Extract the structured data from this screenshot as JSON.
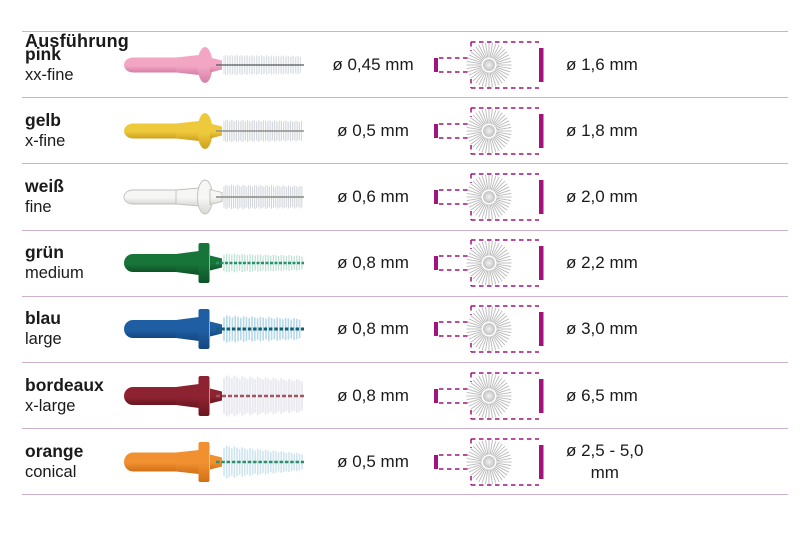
{
  "title": "Ausführung",
  "colors": {
    "accent": "#a2137c",
    "divider": "#cfafce",
    "burst_gray": "#b9b9b9",
    "text": "#1a1a1a"
  },
  "table": {
    "rows": [
      {
        "name": "pink",
        "size_label": "xx-fine",
        "wire_diameter": "ø 0,45 mm",
        "brush_diameter": "ø 1,6 mm",
        "handle_color": "#f2a6c4",
        "handle_shadow": "#d67fa6",
        "handle_stroke": "",
        "bristle_color": "#ccd3da",
        "wire_color": "#55565a",
        "bristle_style": "straight-fine"
      },
      {
        "name": "gelb",
        "size_label": "x-fine",
        "wire_diameter": "ø 0,5 mm",
        "brush_diameter": "ø 1,8 mm",
        "handle_color": "#eec93c",
        "handle_shadow": "#cda01d",
        "handle_stroke": "",
        "bristle_color": "#c9ced5",
        "wire_color": "#8e8d89",
        "bristle_style": "straight-fine"
      },
      {
        "name": "weiß",
        "size_label": "fine",
        "wire_diameter": "ø 0,6 mm",
        "brush_diameter": "ø 2,0 mm",
        "handle_color": "#f6f6f4",
        "handle_shadow": "#d8d8d4",
        "handle_stroke": "#bfbfbb",
        "bristle_color": "#ccd1d7",
        "wire_color": "#97968f",
        "bristle_style": "straight-fine"
      },
      {
        "name": "grün",
        "size_label": "medium",
        "wire_diameter": "ø 0,8 mm",
        "brush_diameter": "ø 2,2 mm",
        "handle_color": "#187539",
        "handle_shadow": "#0d5226",
        "handle_stroke": "",
        "bristle_color": "#bfe2d6",
        "wire_color": "#28926d",
        "bristle_style": "spiral"
      },
      {
        "name": "blau",
        "size_label": "large",
        "wire_diameter": "ø 0,8 mm",
        "brush_diameter": "ø 3,0 mm",
        "handle_color": "#1f5ea3",
        "handle_shadow": "#144680",
        "handle_stroke": "",
        "bristle_color": "#b5d8ea",
        "wire_color": "#135f6f",
        "bristle_style": "spiral"
      },
      {
        "name": "bordeaux",
        "size_label": "x-large",
        "wire_diameter": "ø 0,8 mm",
        "brush_diameter": "ø 6,5 mm",
        "handle_color": "#8d2230",
        "handle_shadow": "#681721",
        "handle_stroke": "",
        "bristle_color": "#eaeaf1",
        "wire_color": "#a05660",
        "bristle_style": "fluffy"
      },
      {
        "name": "orange",
        "size_label": "conical",
        "wire_diameter": "ø 0,5 mm",
        "brush_diameter": "ø 2,5 - 5,0\nmm",
        "handle_color": "#f19030",
        "handle_shadow": "#d06f15",
        "handle_stroke": "",
        "bristle_color": "#cfe4ee",
        "wire_color": "#2f8f68",
        "bristle_style": "spiral-conical"
      }
    ]
  }
}
